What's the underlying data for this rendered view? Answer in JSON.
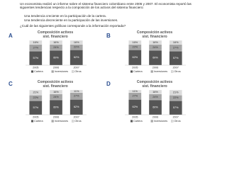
{
  "intro": "Un economista realizó un informe sobre el sistema financiero colombiano entre 2005 y 2007. El economista reportó las siguientes tendencias respecto a la composición de los activos del sistema financiero:",
  "bullets": [
    "Una tendencia creciente en la participación de la cartera.",
    "Una tendencia decreciente en la participación de las inversiones."
  ],
  "question": "¿Cuál de las siguientes gráficas corresponde a la información reportada?",
  "option_letters": [
    "A",
    "B",
    "C",
    "D"
  ],
  "chart_data": [
    {
      "type": "stacked-bar",
      "title": "Composición activos sist. financiero",
      "categories": [
        "2005",
        "2006",
        "2007"
      ],
      "ylim": [
        0,
        100
      ],
      "series": [
        {
          "name": "Cartera",
          "color": "#555555",
          "values": [
            57,
            60,
            62
          ],
          "value_labels": [
            "57%",
            "60%",
            "62%"
          ]
        },
        {
          "name": "Inversiones",
          "color": "#a6a6a6",
          "values": [
            27,
            24,
            22
          ],
          "value_labels": [
            "27%",
            "24%",
            "22%"
          ]
        },
        {
          "name": "Otros",
          "color": "#dcdcdc",
          "values": [
            16,
            16,
            16
          ],
          "value_labels": [
            "16%",
            "16%",
            "16%"
          ]
        }
      ]
    },
    {
      "type": "stacked-bar",
      "title": "Composición activos sist. financiero",
      "categories": [
        "2005",
        "2006",
        "2007"
      ],
      "ylim": [
        0,
        100
      ],
      "series": [
        {
          "name": "Cartera",
          "color": "#555555",
          "values": [
            62,
            60,
            57
          ],
          "value_labels": [
            "62%",
            "60%",
            "57%"
          ]
        },
        {
          "name": "Inversiones",
          "color": "#a6a6a6",
          "values": [
            22,
            24,
            27
          ],
          "value_labels": [
            "22%",
            "24%",
            "27%"
          ]
        },
        {
          "name": "Otros",
          "color": "#dcdcdc",
          "values": [
            16,
            16,
            16
          ],
          "value_labels": [
            "16%",
            "16%",
            "16%"
          ]
        }
      ]
    },
    {
      "type": "stacked-bar",
      "title": "Composición activos sist. financiero",
      "categories": [
        "2005",
        "2006",
        "2007"
      ],
      "ylim": [
        0,
        100
      ],
      "series": [
        {
          "name": "Cartera",
          "color": "#555555",
          "values": [
            57,
            60,
            62
          ],
          "value_labels": [
            "57%",
            "60%",
            "62%"
          ]
        },
        {
          "name": "Inversiones",
          "color": "#a6a6a6",
          "values": [
            22,
            24,
            27
          ],
          "value_labels": [
            "22%",
            "24%",
            "27%"
          ]
        },
        {
          "name": "Otros",
          "color": "#dcdcdc",
          "values": [
            21,
            16,
            11
          ],
          "value_labels": [
            "21%",
            "16%",
            "11%"
          ]
        }
      ]
    },
    {
      "type": "stacked-bar",
      "title": "Composición activos sist. financiero",
      "categories": [
        "2005",
        "2006",
        "2007"
      ],
      "ylim": [
        0,
        100
      ],
      "series": [
        {
          "name": "Cartera",
          "color": "#555555",
          "values": [
            62,
            60,
            57
          ],
          "value_labels": [
            "62%",
            "60%",
            "57%"
          ]
        },
        {
          "name": "Inversiones",
          "color": "#a6a6a6",
          "values": [
            27,
            24,
            22
          ],
          "value_labels": [
            "27%",
            "24%",
            "22%"
          ]
        },
        {
          "name": "Otros",
          "color": "#dcdcdc",
          "values": [
            11,
            16,
            21
          ],
          "value_labels": [
            "11%",
            "16%",
            "21%"
          ]
        }
      ]
    }
  ]
}
